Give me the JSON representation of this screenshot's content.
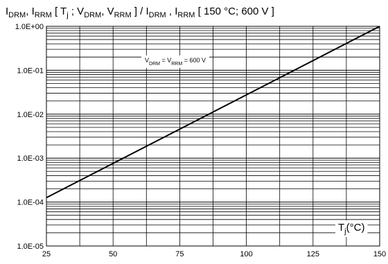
{
  "chart_data": {
    "type": "line",
    "title": {
      "parts": [
        {
          "t": "I",
          "s": false
        },
        {
          "t": "DRM",
          "s": true
        },
        {
          "t": ", I",
          "s": false
        },
        {
          "t": "RRM",
          "s": true
        },
        {
          "t": " [ T",
          "s": false
        },
        {
          "t": "j",
          "s": true
        },
        {
          "t": " ; V",
          "s": false
        },
        {
          "t": "DRM",
          "s": true
        },
        {
          "t": ", V",
          "s": false
        },
        {
          "t": "RRM",
          "s": true
        },
        {
          "t": " ] / I",
          "s": false
        },
        {
          "t": "DRM",
          "s": true
        },
        {
          "t": " , I",
          "s": false
        },
        {
          "t": "RRM",
          "s": true
        },
        {
          "t": " [ 150 °C; 600 V ]",
          "s": false
        }
      ]
    },
    "xlabel": {
      "parts": [
        {
          "t": "T",
          "s": false
        },
        {
          "t": "j",
          "s": true
        },
        {
          "t": "(°C)",
          "s": false
        }
      ]
    },
    "annotation": {
      "parts": [
        {
          "t": "V",
          "s": false
        },
        {
          "t": "DRM",
          "s": true
        },
        {
          "t": " = V",
          "s": false
        },
        {
          "t": "RRM",
          "s": true
        },
        {
          "t": " = 600 V",
          "s": false
        }
      ]
    },
    "x_scale": "linear",
    "y_scale": "log",
    "xlim": [
      25,
      150
    ],
    "ylim": [
      1e-05,
      1
    ],
    "x_ticks": [
      25,
      50,
      75,
      100,
      125,
      150
    ],
    "x_tick_labels": [
      "25",
      "50",
      "75",
      "100",
      "125",
      "150"
    ],
    "y_ticks": [
      1e-05,
      0.0001,
      0.001,
      0.01,
      0.1,
      1
    ],
    "y_tick_labels": [
      "1.0E-05",
      "1.0E-04",
      "1.0E-03",
      "1.0E-02",
      "1.0E-01",
      "1.0E+00"
    ],
    "grid": true,
    "series": [
      {
        "x": [
          25,
          150
        ],
        "y": [
          0.000126,
          1.0
        ]
      }
    ],
    "colors": {
      "line": "#000000",
      "grid": "#000000",
      "background": "#ffffff"
    }
  }
}
